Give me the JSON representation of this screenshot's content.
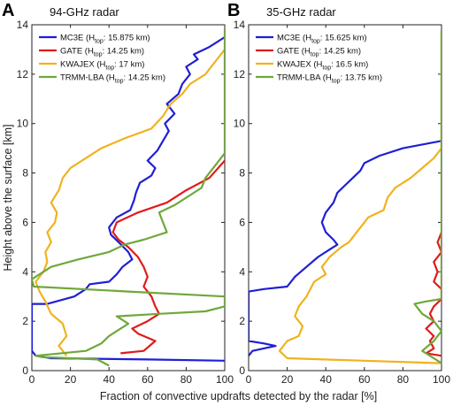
{
  "figure": {
    "ylabel": "Height above the surface [km]",
    "xlabel": "Fraction of convective updrafts detected by the radar [%]"
  },
  "colors": {
    "MC3E": "#1f1fd6",
    "GATE": "#e01b1b",
    "KWAJEX": "#f0b21e",
    "TRMM-LBA": "#6fa83a"
  },
  "chart_data": [
    {
      "type": "line",
      "panel_letter": "A",
      "title": "94-GHz radar",
      "xlim": [
        0,
        100
      ],
      "ylim": [
        0,
        14
      ],
      "xticks": [
        0,
        20,
        40,
        60,
        80,
        100
      ],
      "yticks": [
        0,
        2,
        4,
        6,
        8,
        10,
        12,
        14
      ],
      "legend_position": "top-left",
      "series": [
        {
          "name": "MC3E",
          "legend": {
            "pre": "MC3E (H",
            "sub": "top",
            "post": ": 15.875 km)"
          },
          "color": "MC3E",
          "points": [
            [
              100,
              0.4
            ],
            [
              60,
              0.45
            ],
            [
              10,
              0.5
            ],
            [
              2,
              0.6
            ],
            [
              0,
              0.8
            ],
            [
              0,
              2.7
            ],
            [
              8,
              2.7
            ],
            [
              22,
              3.0
            ],
            [
              28,
              3.3
            ],
            [
              30,
              3.5
            ],
            [
              40,
              3.6
            ],
            [
              44,
              3.9
            ],
            [
              47,
              4.2
            ],
            [
              52,
              4.5
            ],
            [
              50,
              4.8
            ],
            [
              45,
              5.2
            ],
            [
              41,
              5.5
            ],
            [
              40,
              5.8
            ],
            [
              44,
              6.2
            ],
            [
              51,
              6.5
            ],
            [
              53,
              6.9
            ],
            [
              54,
              7.2
            ],
            [
              56,
              7.6
            ],
            [
              62,
              7.9
            ],
            [
              64,
              8.2
            ],
            [
              60,
              8.5
            ],
            [
              65,
              8.9
            ],
            [
              68,
              9.3
            ],
            [
              71,
              9.7
            ],
            [
              69,
              10.0
            ],
            [
              74,
              10.4
            ],
            [
              70,
              10.8
            ],
            [
              76,
              11.2
            ],
            [
              78,
              11.6
            ],
            [
              82,
              12.0
            ],
            [
              80,
              12.3
            ],
            [
              86,
              12.6
            ],
            [
              84,
              12.8
            ],
            [
              92,
              13.1
            ],
            [
              100,
              13.5
            ]
          ]
        },
        {
          "name": "GATE",
          "legend": {
            "pre": "GATE (H",
            "sub": "top",
            "post": ": 14.25 km)"
          },
          "color": "GATE",
          "points": [
            [
              46,
              0.7
            ],
            [
              58,
              0.8
            ],
            [
              64,
              1.2
            ],
            [
              55,
              1.5
            ],
            [
              52,
              1.7
            ],
            [
              60,
              2.0
            ],
            [
              66,
              2.3
            ],
            [
              64,
              2.6
            ],
            [
              62,
              3.0
            ],
            [
              58,
              3.4
            ],
            [
              60,
              3.8
            ],
            [
              58,
              4.2
            ],
            [
              55,
              4.6
            ],
            [
              50,
              5.0
            ],
            [
              45,
              5.3
            ],
            [
              42,
              5.6
            ],
            [
              44,
              6.0
            ],
            [
              55,
              6.4
            ],
            [
              70,
              6.8
            ],
            [
              80,
              7.3
            ],
            [
              92,
              7.8
            ],
            [
              100,
              8.5
            ]
          ]
        },
        {
          "name": "KWAJEX",
          "legend": {
            "pre": "KWAJEX (H",
            "sub": "top",
            "post": ": 17 km)"
          },
          "color": "KWAJEX",
          "points": [
            [
              18,
              0.6
            ],
            [
              14,
              1.0
            ],
            [
              18,
              1.4
            ],
            [
              16,
              1.9
            ],
            [
              10,
              2.3
            ],
            [
              7,
              2.8
            ],
            [
              4,
              3.2
            ],
            [
              2,
              3.6
            ],
            [
              6,
              4.0
            ],
            [
              8,
              4.4
            ],
            [
              7,
              4.8
            ],
            [
              10,
              5.2
            ],
            [
              8,
              5.6
            ],
            [
              12,
              6.0
            ],
            [
              13,
              6.4
            ],
            [
              10,
              6.8
            ],
            [
              14,
              7.3
            ],
            [
              16,
              7.8
            ],
            [
              20,
              8.2
            ],
            [
              28,
              8.6
            ],
            [
              36,
              9.0
            ],
            [
              48,
              9.4
            ],
            [
              62,
              9.8
            ],
            [
              68,
              10.3
            ],
            [
              72,
              10.8
            ],
            [
              78,
              11.2
            ],
            [
              82,
              11.6
            ],
            [
              90,
              12.0
            ],
            [
              96,
              12.6
            ],
            [
              100,
              13.0
            ]
          ]
        },
        {
          "name": "TRMM-LBA",
          "legend": {
            "pre": "TRMM-LBA (H",
            "sub": "top",
            "post": ": 14.25 km)"
          },
          "color": "TRMM-LBA",
          "points": [
            [
              40,
              0.2
            ],
            [
              34,
              0.45
            ],
            [
              20,
              0.5
            ],
            [
              5,
              0.55
            ],
            [
              2,
              0.6
            ],
            [
              28,
              0.8
            ],
            [
              36,
              1.1
            ],
            [
              40,
              1.4
            ],
            [
              50,
              1.9
            ],
            [
              44,
              2.2
            ],
            [
              66,
              2.3
            ],
            [
              90,
              2.4
            ],
            [
              100,
              2.6
            ],
            [
              100,
              3.0
            ],
            [
              50,
              3.2
            ],
            [
              1,
              3.4
            ],
            [
              0,
              3.7
            ],
            [
              10,
              4.2
            ],
            [
              24,
              4.5
            ],
            [
              40,
              4.8
            ],
            [
              48,
              5.1
            ],
            [
              58,
              5.3
            ],
            [
              70,
              5.6
            ],
            [
              68,
              6.0
            ],
            [
              66,
              6.4
            ],
            [
              74,
              6.7
            ],
            [
              80,
              7.0
            ],
            [
              88,
              7.4
            ],
            [
              90,
              7.8
            ],
            [
              96,
              8.4
            ],
            [
              100,
              8.8
            ],
            [
              100,
              13.8
            ]
          ]
        }
      ]
    },
    {
      "type": "line",
      "panel_letter": "B",
      "title": "35-GHz radar",
      "xlim": [
        0,
        100
      ],
      "ylim": [
        0,
        14
      ],
      "xticks": [
        0,
        20,
        40,
        60,
        80,
        100
      ],
      "yticks": [
        0,
        2,
        4,
        6,
        8,
        10,
        12,
        14
      ],
      "legend_position": "top-left",
      "series": [
        {
          "name": "MC3E",
          "legend": {
            "pre": "MC3E (H",
            "sub": "top",
            "post": ": 15.625 km)"
          },
          "color": "MC3E",
          "points": [
            [
              0,
              0.6
            ],
            [
              2,
              0.8
            ],
            [
              14,
              1.0
            ],
            [
              8,
              1.1
            ],
            [
              0,
              1.2
            ],
            [
              0,
              3.2
            ],
            [
              8,
              3.3
            ],
            [
              20,
              3.4
            ],
            [
              24,
              3.8
            ],
            [
              30,
              4.2
            ],
            [
              36,
              4.6
            ],
            [
              42,
              4.9
            ],
            [
              46,
              5.1
            ],
            [
              44,
              5.3
            ],
            [
              40,
              5.6
            ],
            [
              38,
              6.0
            ],
            [
              40,
              6.4
            ],
            [
              44,
              6.8
            ],
            [
              46,
              7.2
            ],
            [
              50,
              7.5
            ],
            [
              54,
              7.8
            ],
            [
              58,
              8.1
            ],
            [
              60,
              8.4
            ],
            [
              68,
              8.7
            ],
            [
              80,
              9.0
            ],
            [
              100,
              9.3
            ]
          ]
        },
        {
          "name": "GATE",
          "legend": {
            "pre": "GATE (H",
            "sub": "top",
            "post": ": 14.25 km)"
          },
          "color": "GATE",
          "points": [
            [
              100,
              0.6
            ],
            [
              92,
              0.7
            ],
            [
              96,
              0.9
            ],
            [
              94,
              1.2
            ],
            [
              96,
              1.4
            ],
            [
              92,
              1.7
            ],
            [
              96,
              2.0
            ],
            [
              94,
              2.3
            ],
            [
              96,
              2.6
            ],
            [
              100,
              2.9
            ],
            [
              100,
              3.3
            ],
            [
              96,
              3.6
            ],
            [
              98,
              4.0
            ],
            [
              96,
              4.4
            ],
            [
              100,
              4.8
            ],
            [
              98,
              5.2
            ],
            [
              100,
              5.6
            ]
          ]
        },
        {
          "name": "KWAJEX",
          "legend": {
            "pre": "KWAJEX (H",
            "sub": "top",
            "post": ": 16.5 km)"
          },
          "color": "KWAJEX",
          "points": [
            [
              100,
              0.3
            ],
            [
              60,
              0.4
            ],
            [
              20,
              0.5
            ],
            [
              16,
              0.8
            ],
            [
              20,
              1.2
            ],
            [
              26,
              1.4
            ],
            [
              28,
              1.8
            ],
            [
              24,
              2.2
            ],
            [
              26,
              2.6
            ],
            [
              30,
              3.0
            ],
            [
              32,
              3.3
            ],
            [
              34,
              3.6
            ],
            [
              40,
              3.9
            ],
            [
              38,
              4.2
            ],
            [
              42,
              4.6
            ],
            [
              48,
              5.0
            ],
            [
              52,
              5.2
            ],
            [
              56,
              5.6
            ],
            [
              62,
              6.2
            ],
            [
              70,
              6.5
            ],
            [
              72,
              7.0
            ],
            [
              76,
              7.4
            ],
            [
              84,
              7.8
            ],
            [
              90,
              8.2
            ],
            [
              96,
              8.6
            ],
            [
              100,
              9.0
            ],
            [
              100,
              13.8
            ]
          ]
        },
        {
          "name": "TRMM-LBA",
          "legend": {
            "pre": "TRMM-LBA (H",
            "sub": "top",
            "post": ": 13.75 km)"
          },
          "color": "TRMM-LBA",
          "points": [
            [
              100,
              0.3
            ],
            [
              96,
              0.5
            ],
            [
              90,
              0.8
            ],
            [
              96,
              1.2
            ],
            [
              100,
              1.6
            ],
            [
              96,
              2.0
            ],
            [
              90,
              2.3
            ],
            [
              88,
              2.5
            ],
            [
              86,
              2.7
            ],
            [
              92,
              2.8
            ],
            [
              100,
              2.9
            ],
            [
              100,
              13.8
            ]
          ]
        }
      ]
    }
  ]
}
